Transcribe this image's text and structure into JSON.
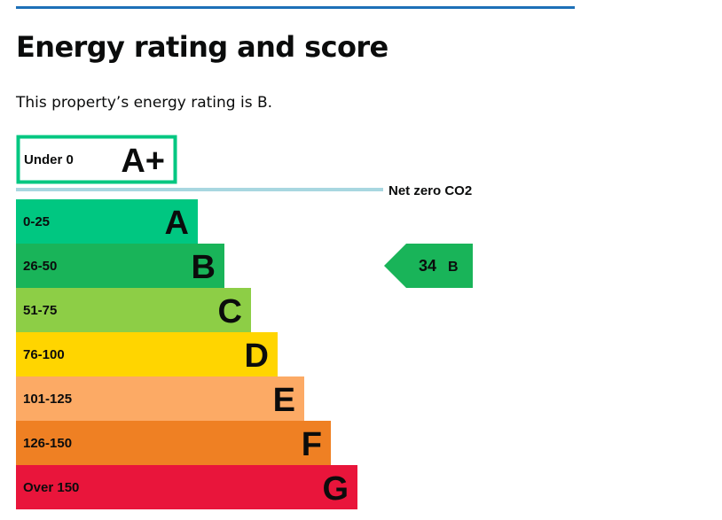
{
  "header": {
    "title": "Energy rating and score",
    "subtitle": "This property’s energy rating is B."
  },
  "chart_data": {
    "type": "bar",
    "title": "",
    "xlabel": "",
    "ylabel": "",
    "bands": [
      {
        "range": "Under 0",
        "letter": "A+",
        "color": "#00c781",
        "rank": 1
      },
      {
        "range": "0-25",
        "letter": "A",
        "color": "#00c781",
        "rank": 2
      },
      {
        "range": "26-50",
        "letter": "B",
        "color": "#19b459",
        "rank": 3
      },
      {
        "range": "51-75",
        "letter": "C",
        "color": "#8dce46",
        "rank": 4
      },
      {
        "range": "76-100",
        "letter": "D",
        "color": "#ffd500",
        "rank": 5
      },
      {
        "range": "101-125",
        "letter": "E",
        "color": "#fcaa65",
        "rank": 6
      },
      {
        "range": "126-150",
        "letter": "F",
        "color": "#ef8023",
        "rank": 7
      },
      {
        "range": "Over 150",
        "letter": "G",
        "color": "#e9153b",
        "rank": 8
      }
    ],
    "divider_label": "Net zero CO2",
    "divider_color": "#a8d7e0",
    "current": {
      "score": "34",
      "band": "B",
      "color": "#19b459"
    }
  }
}
